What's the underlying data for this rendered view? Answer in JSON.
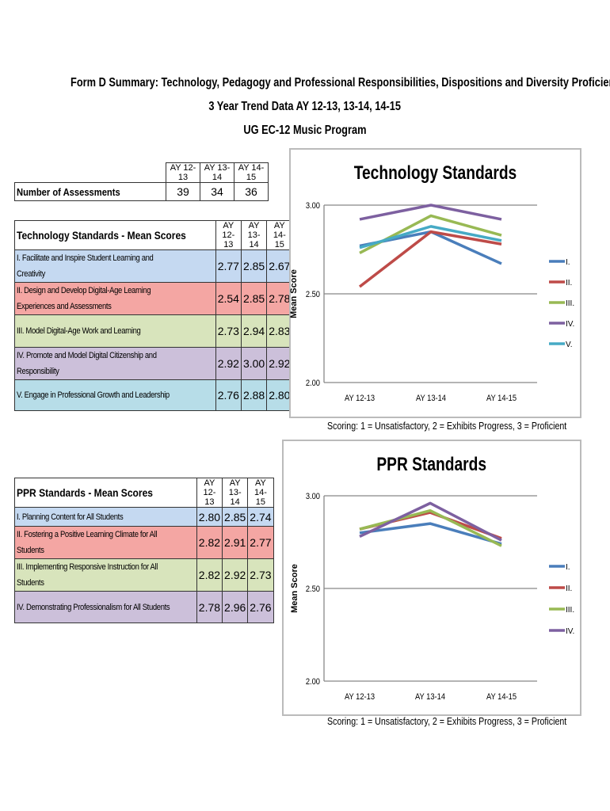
{
  "header": {
    "line1": "Form D Summary: Technology, Pedagogy and Professional Responsibilities, Dispositions and Diversity Proficiencies",
    "line2": "3 Year Trend Data AY 12-13, 13-14, 14-15",
    "line3": "UG EC-12 Music Program"
  },
  "years": [
    "AY 12-13",
    "AY 13-14",
    "AY 14-15"
  ],
  "assessments": {
    "label": "Number of Assessments",
    "values": [
      "39",
      "34",
      "36"
    ]
  },
  "tech_table": {
    "title": "Technology Standards - Mean Scores",
    "rows": [
      {
        "label": "I. Facilitate and Inspire Student Learning and",
        "label2": "Creativity",
        "values": [
          "2.77",
          "2.85",
          "2.67"
        ],
        "color": "#c5d9f1"
      },
      {
        "label": "II. Design and Develop Digital-Age Learning",
        "label2": "Experiences and Assessments",
        "values": [
          "2.54",
          "2.85",
          "2.78"
        ],
        "color": "#f4a6a3"
      },
      {
        "label": "III. Model Digital-Age Work and Learning",
        "label2": "",
        "values": [
          "2.73",
          "2.94",
          "2.83"
        ],
        "color": "#d8e4bc"
      },
      {
        "label": "IV. Promote and Model Digital Citizenship and",
        "label2": "Responsibility",
        "values": [
          "2.92",
          "3.00",
          "2.92"
        ],
        "color": "#ccc0da"
      },
      {
        "label": "V. Engage in Professional Growth and Leadership",
        "label2": "",
        "values": [
          "2.76",
          "2.88",
          "2.80"
        ],
        "color": "#b7dde8"
      }
    ]
  },
  "ppr_table": {
    "title": "PPR Standards - Mean Scores",
    "rows": [
      {
        "label": "I. Planning Content for All Students",
        "label2": "",
        "values": [
          "2.80",
          "2.85",
          "2.74"
        ],
        "color": "#c5d9f1"
      },
      {
        "label": "II. Fostering a Positive Learning Climate for All",
        "label2": "Students",
        "values": [
          "2.82",
          "2.91",
          "2.77"
        ],
        "color": "#f4a6a3"
      },
      {
        "label": "III. Implementing Responsive Instruction for All",
        "label2": "Students",
        "values": [
          "2.82",
          "2.92",
          "2.73"
        ],
        "color": "#d8e4bc"
      },
      {
        "label": "IV. Demonstrating Professionalism for All Students",
        "label2": "",
        "values": [
          "2.78",
          "2.96",
          "2.76"
        ],
        "color": "#ccc0da"
      }
    ]
  },
  "scoring_note": "Scoring: 1 = Unsatisfactory,  2 = Exhibits Progress,  3 = Proficient",
  "chart_data": [
    {
      "type": "line",
      "title": "Technology Standards",
      "ylabel": "Mean Score",
      "xlabel": "",
      "categories": [
        "AY 12-13",
        "AY 13-14",
        "AY 14-15"
      ],
      "ylim": [
        2.0,
        3.0
      ],
      "yticks": [
        "2.00",
        "2.50",
        "3.00"
      ],
      "grid": true,
      "legend": "right",
      "series": [
        {
          "name": "I.",
          "values": [
            2.77,
            2.85,
            2.67
          ],
          "color": "#4a7ebb"
        },
        {
          "name": "II.",
          "values": [
            2.54,
            2.85,
            2.78
          ],
          "color": "#be4b48"
        },
        {
          "name": "III.",
          "values": [
            2.73,
            2.94,
            2.83
          ],
          "color": "#98b954"
        },
        {
          "name": "IV.",
          "values": [
            2.92,
            3.0,
            2.92
          ],
          "color": "#7d60a0"
        },
        {
          "name": "V.",
          "values": [
            2.76,
            2.88,
            2.8
          ],
          "color": "#46aac5"
        }
      ]
    },
    {
      "type": "line",
      "title": "PPR Standards",
      "ylabel": "Mean Score",
      "xlabel": "",
      "categories": [
        "AY 12-13",
        "AY 13-14",
        "AY 14-15"
      ],
      "ylim": [
        2.0,
        3.0
      ],
      "yticks": [
        "2.00",
        "2.50",
        "3.00"
      ],
      "grid": true,
      "legend": "right",
      "series": [
        {
          "name": "I.",
          "values": [
            2.8,
            2.85,
            2.74
          ],
          "color": "#4a7ebb"
        },
        {
          "name": "II.",
          "values": [
            2.82,
            2.91,
            2.77
          ],
          "color": "#be4b48"
        },
        {
          "name": "III.",
          "values": [
            2.82,
            2.92,
            2.73
          ],
          "color": "#98b954"
        },
        {
          "name": "IV.",
          "values": [
            2.78,
            2.96,
            2.76
          ],
          "color": "#7d60a0"
        }
      ]
    }
  ]
}
